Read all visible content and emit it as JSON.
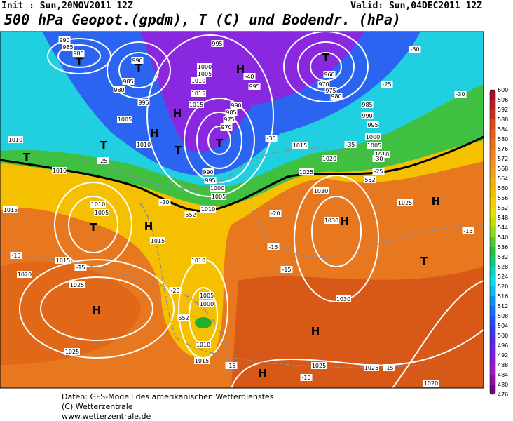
{
  "header": {
    "init": "Init : Sun,20NOV2011 12Z",
    "valid": "Valid: Sun,04DEC2011 12Z",
    "title": "500 hPa Geopot.(gpdm), T (C) und Bodendr. (hPa)"
  },
  "colorbar": {
    "labels": [
      "600",
      "596",
      "592",
      "588",
      "584",
      "580",
      "576",
      "572",
      "568",
      "564",
      "560",
      "556",
      "552",
      "548",
      "544",
      "540",
      "536",
      "532",
      "528",
      "524",
      "520",
      "516",
      "512",
      "508",
      "504",
      "500",
      "496",
      "492",
      "488",
      "484",
      "480",
      "476"
    ],
    "colors": [
      "#a01030",
      "#b82020",
      "#c83018",
      "#d84818",
      "#e06018",
      "#e87018",
      "#f08020",
      "#f09020",
      "#f0a020",
      "#f0b010",
      "#f0c000",
      "#f0d000",
      "#e8e000",
      "#c0e000",
      "#90d820",
      "#50c830",
      "#20c040",
      "#10c880",
      "#10d0c0",
      "#10d8e8",
      "#10b8f0",
      "#1090f0",
      "#1070f0",
      "#2050f0",
      "#3838e8",
      "#5028e0",
      "#7020e0",
      "#8818d8",
      "#a018c8",
      "#9010a0",
      "#700880"
    ]
  },
  "map_labels": [
    "990",
    "985",
    "980",
    "T",
    "990",
    "985",
    "980",
    "995",
    "T",
    "995",
    "1000",
    "1005",
    "1010",
    "1015",
    "H",
    "-40",
    "995",
    "990",
    "985",
    "975",
    "970",
    "T",
    "T",
    "960",
    "970",
    "975",
    "980",
    "-30",
    "-25",
    "-30",
    "985",
    "990",
    "995",
    "1000",
    "1005",
    "1010",
    "-35",
    "-30",
    "-25",
    "1005",
    "H",
    "1010",
    "T",
    "1010",
    "T",
    "-25",
    "1010",
    "H",
    "1015",
    "T",
    "990",
    "995",
    "1000",
    "1005",
    "1010",
    "552",
    "-30",
    "1015",
    "1020",
    "1025",
    "1030",
    "552",
    "1010",
    "1005",
    "T",
    "H",
    "-20",
    "1015",
    "1015",
    "-15",
    "1015",
    "-15",
    "1020",
    "-20",
    "1030",
    "H",
    "-15",
    "1010",
    "-15",
    "T",
    "H",
    "1025",
    "-15",
    "1025",
    "H",
    "-20",
    "1005",
    "1000",
    "1010",
    "1015",
    "1025",
    "1030",
    "H",
    "1025",
    "1025",
    "-15",
    "-15",
    "1020",
    "-10",
    "H",
    "552"
  ],
  "footer": {
    "source": "Daten: GFS-Modell des amerikanischen Wetterdienstes",
    "copyright": "(C) Wetterzentrale",
    "url": "www.wetterzentrale.de"
  }
}
